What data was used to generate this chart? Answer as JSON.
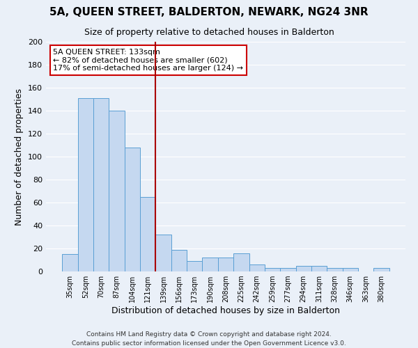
{
  "title": "5A, QUEEN STREET, BALDERTON, NEWARK, NG24 3NR",
  "subtitle": "Size of property relative to detached houses in Balderton",
  "xlabel": "Distribution of detached houses by size in Balderton",
  "ylabel": "Number of detached properties",
  "bar_color": "#c5d8f0",
  "bar_edge_color": "#5a9fd4",
  "background_color": "#eaf0f8",
  "grid_color": "#ffffff",
  "categories": [
    "35sqm",
    "52sqm",
    "70sqm",
    "87sqm",
    "104sqm",
    "121sqm",
    "139sqm",
    "156sqm",
    "173sqm",
    "190sqm",
    "208sqm",
    "225sqm",
    "242sqm",
    "259sqm",
    "277sqm",
    "294sqm",
    "311sqm",
    "328sqm",
    "346sqm",
    "363sqm",
    "380sqm"
  ],
  "values": [
    15,
    151,
    151,
    140,
    108,
    65,
    32,
    19,
    9,
    12,
    12,
    16,
    6,
    3,
    3,
    5,
    5,
    3,
    3,
    0,
    3
  ],
  "ylim": [
    0,
    200
  ],
  "yticks": [
    0,
    20,
    40,
    60,
    80,
    100,
    120,
    140,
    160,
    180,
    200
  ],
  "vline_color": "#aa0000",
  "annotation_title": "5A QUEEN STREET: 133sqm",
  "annotation_line1": "← 82% of detached houses are smaller (602)",
  "annotation_line2": "17% of semi-detached houses are larger (124) →",
  "annotation_box_facecolor": "#ffffff",
  "annotation_box_edgecolor": "#cc0000",
  "footer_line1": "Contains HM Land Registry data © Crown copyright and database right 2024.",
  "footer_line2": "Contains public sector information licensed under the Open Government Licence v3.0."
}
